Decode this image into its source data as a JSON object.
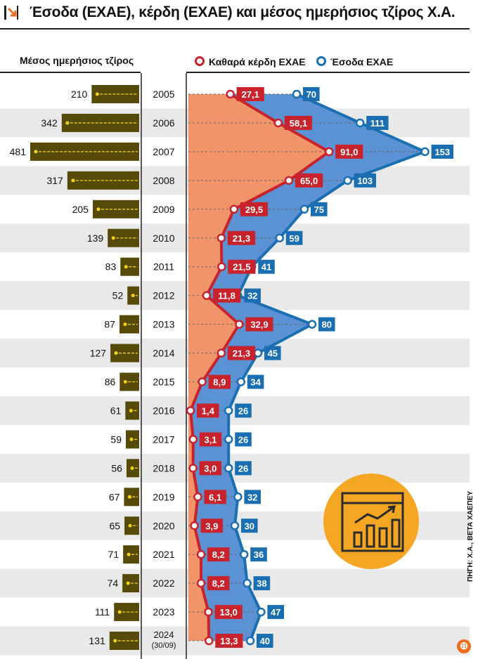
{
  "title": "Έσοδα (ΕΧΑΕ), κέρδη (ΕΧΑΕ) και μέσος ημερήσιος τζίρος Χ.Α.",
  "left_header": "Μέσος ημερήσιος τζίρος",
  "legend": {
    "profit": "Καθαρά κέρδη ΕΧΑΕ",
    "revenue": "Έσοδα ΕΧΑΕ"
  },
  "credit": "ΠΗΓΗ: Χ.Α., ΒΕΤΑ ΧΑΕΠΕΥ",
  "logo_glyph": "⊕",
  "colors": {
    "profit": "#c8232c",
    "revenue": "#1a6fb3",
    "revenue_fill": "#5b92d3",
    "profit_fill": "#f2946a",
    "turnover_bar": "#564a09",
    "turnover_line": "#f3d21a",
    "stripe": "#e9e9e9",
    "badge": "#f5a623"
  },
  "chart_data": {
    "type": "line",
    "title": "Έσοδα (ΕΧΑΕ), κέρδη (ΕΧΑΕ) και μέσος ημερήσιος τζίρος Χ.Α.",
    "categories": [
      "2005",
      "2006",
      "2007",
      "2008",
      "2009",
      "2010",
      "2011",
      "2012",
      "2013",
      "2014",
      "2015",
      "2016",
      "2017",
      "2018",
      "2019",
      "2020",
      "2021",
      "2022",
      "2023",
      "2024"
    ],
    "category_sublabels": {
      "2024": "(30/09)"
    },
    "series": [
      {
        "name": "Μέσος ημερήσιος τζίρος",
        "kind": "bar",
        "values": [
          210,
          342,
          481,
          317,
          205,
          139,
          83,
          52,
          87,
          127,
          86,
          61,
          59,
          56,
          67,
          65,
          71,
          74,
          111,
          131
        ]
      },
      {
        "name": "Καθαρά κέρδη ΕΧΑΕ",
        "kind": "line",
        "values": [
          27.1,
          58.1,
          91.0,
          65.0,
          29.5,
          21.3,
          21.5,
          11.8,
          32.9,
          21.3,
          8.9,
          1.4,
          3.1,
          3.0,
          6.1,
          3.9,
          8.2,
          8.2,
          13.0,
          13.3
        ],
        "labels": [
          "27,1",
          "58,1",
          "91,0",
          "65,0",
          "29,5",
          "21,3",
          "21,5",
          "11,8",
          "32,9",
          "21,3",
          "8,9",
          "1,4",
          "3,1",
          "3,0",
          "6,1",
          "3,9",
          "8,2",
          "8,2",
          "13,0",
          "13,3"
        ]
      },
      {
        "name": "Έσοδα ΕΧΑΕ",
        "kind": "line",
        "values": [
          70,
          111,
          153,
          103,
          75,
          59,
          41,
          32,
          80,
          45,
          34,
          26,
          26,
          26,
          32,
          30,
          36,
          38,
          47,
          40
        ],
        "labels": [
          "70",
          "111",
          "153",
          "103",
          "75",
          "59",
          "41",
          "32",
          "80",
          "45",
          "34",
          "26",
          "26",
          "26",
          "32",
          "30",
          "36",
          "38",
          "47",
          "40"
        ]
      }
    ],
    "xlim": [
      0,
      160
    ],
    "turnover_max": 481,
    "orientation": "vertical-categories"
  }
}
